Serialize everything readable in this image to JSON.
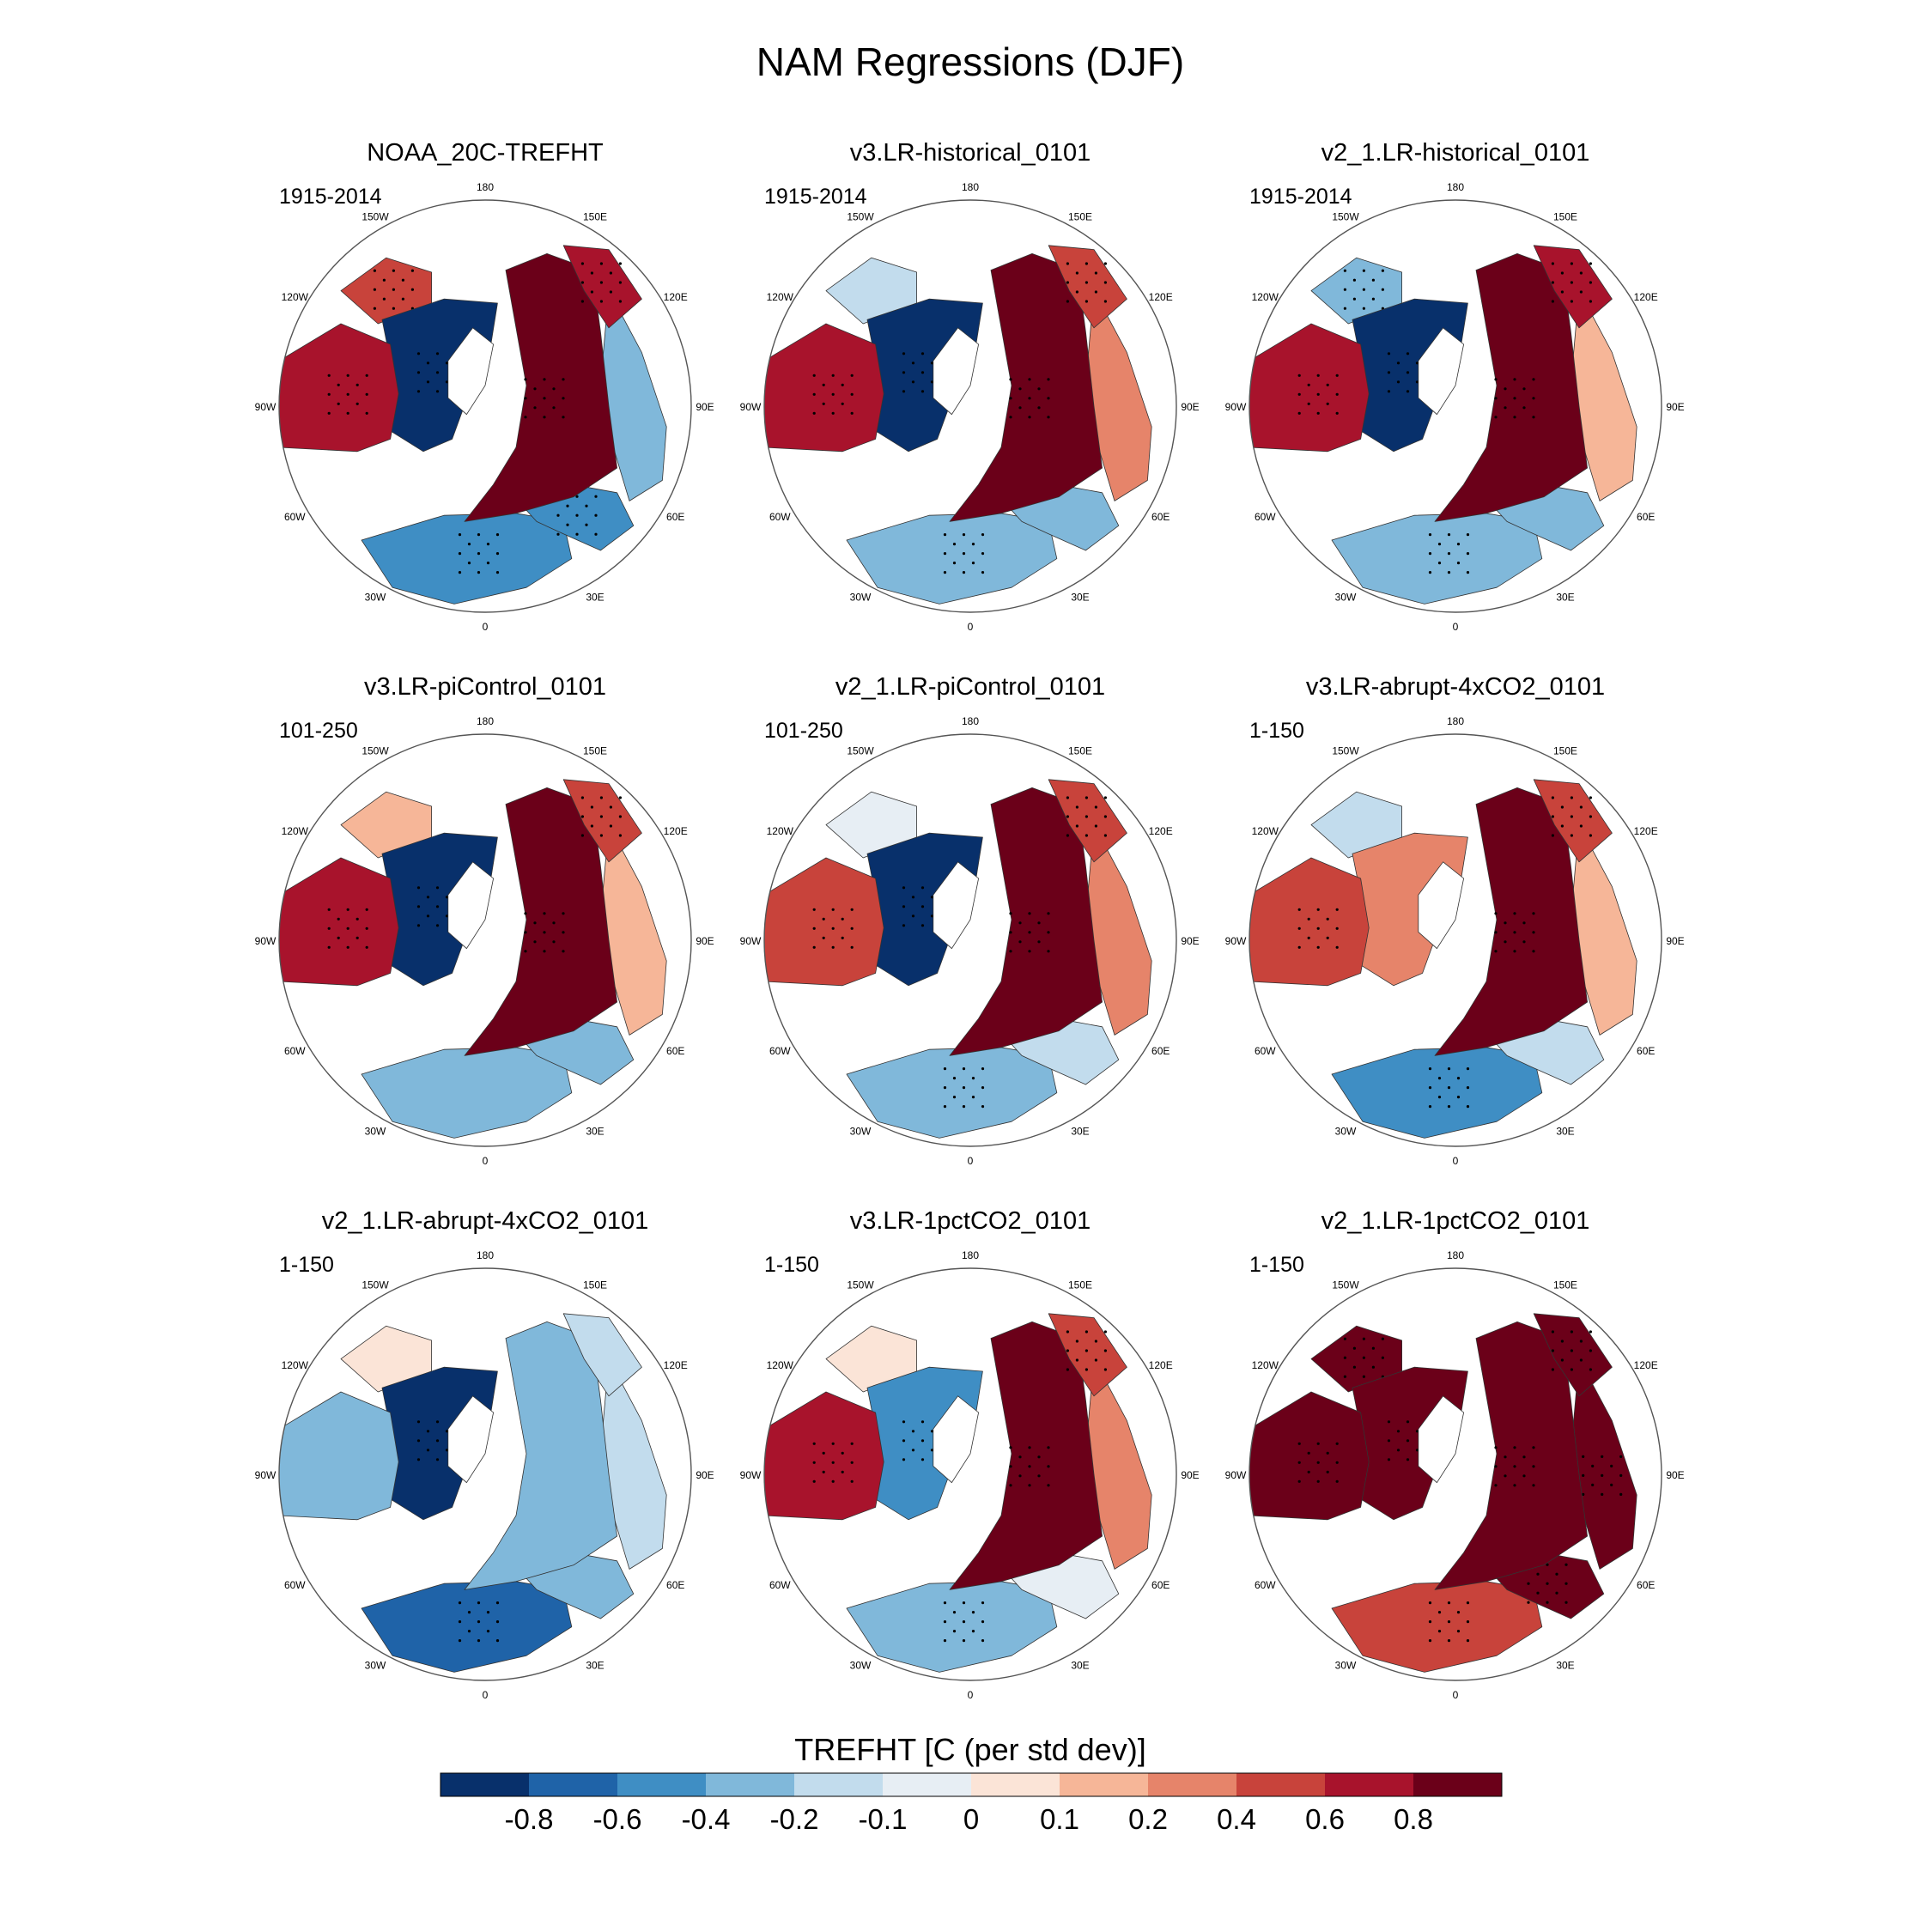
{
  "figure": {
    "title": "NAM Regressions (DJF)"
  },
  "chart_data": {
    "type": "heatmap",
    "projection": "north-polar-stereographic",
    "title": "NAM Regressions (DJF)",
    "variable": "TREFHT",
    "units_label": "TREFHT [C (per std dev)]",
    "significance": "stippling",
    "longitude_labels": [
      "180",
      "150E",
      "120E",
      "90E",
      "60E",
      "30E",
      "0",
      "30W",
      "60W",
      "90W",
      "120W",
      "150W"
    ],
    "colorbar": {
      "title": "TREFHT [C (per std dev)]",
      "levels": [
        "-0.8",
        "-0.6",
        "-0.4",
        "-0.2",
        "-0.1",
        "0",
        "0.1",
        "0.2",
        "0.4",
        "0.6",
        "0.8"
      ],
      "colors": [
        "#08306b",
        "#1f63a8",
        "#3f8ec4",
        "#80b8da",
        "#c2dced",
        "#e7eef4",
        "#fbe4d7",
        "#f6b698",
        "#e6846a",
        "#c8433b",
        "#a8132c",
        "#6b0019"
      ]
    },
    "panels": [
      {
        "name": "NOAA_20C-TREFHT",
        "period": "1915-2014",
        "regions": {
          "eurasia": 0.9,
          "siberia": 0.7,
          "north_america": -0.85,
          "alaska": 0.5,
          "central_na": 0.7,
          "north_africa": -0.45,
          "middle_east": -0.6,
          "east_asia": -0.25
        }
      },
      {
        "name": "v3.LR-historical_0101",
        "period": "1915-2014",
        "regions": {
          "eurasia": 0.9,
          "siberia": 0.4,
          "north_america": -0.9,
          "alaska": -0.2,
          "central_na": 0.6,
          "north_africa": -0.4,
          "middle_east": -0.3,
          "east_asia": 0.2
        }
      },
      {
        "name": "v2_1.LR-historical_0101",
        "period": "1915-2014",
        "regions": {
          "eurasia": 0.9,
          "siberia": 0.6,
          "north_america": -0.9,
          "alaska": -0.4,
          "central_na": 0.6,
          "north_africa": -0.4,
          "middle_east": -0.3,
          "east_asia": 0.15
        }
      },
      {
        "name": "v3.LR-piControl_0101",
        "period": "101-250",
        "regions": {
          "eurasia": 0.9,
          "siberia": 0.4,
          "north_america": -0.9,
          "alaska": 0.1,
          "central_na": 0.6,
          "north_africa": -0.35,
          "middle_east": -0.3,
          "east_asia": 0.1
        }
      },
      {
        "name": "v2_1.LR-piControl_0101",
        "period": "101-250",
        "regions": {
          "eurasia": 0.9,
          "siberia": 0.5,
          "north_america": -0.9,
          "alaska": -0.1,
          "central_na": 0.5,
          "north_africa": -0.4,
          "middle_east": -0.2,
          "east_asia": 0.2
        }
      },
      {
        "name": "v3.LR-abrupt-4xCO2_0101",
        "period": "1-150",
        "regions": {
          "eurasia": 0.9,
          "siberia": 0.5,
          "north_america": 0.3,
          "alaska": -0.15,
          "central_na": 0.4,
          "north_africa": -0.6,
          "middle_east": -0.2,
          "east_asia": 0.15
        }
      },
      {
        "name": "v2_1.LR-abrupt-4xCO2_0101",
        "period": "1-150",
        "regions": {
          "eurasia": -0.3,
          "siberia": -0.15,
          "north_america": -0.9,
          "alaska": 0.05,
          "central_na": -0.35,
          "north_africa": -0.7,
          "middle_east": -0.3,
          "east_asia": -0.2
        }
      },
      {
        "name": "v3.LR-1pctCO2_0101",
        "period": "1-150",
        "regions": {
          "eurasia": 0.9,
          "siberia": 0.5,
          "north_america": -0.6,
          "alaska": 0.05,
          "central_na": 0.6,
          "north_africa": -0.4,
          "middle_east": -0.1,
          "east_asia": 0.2
        }
      },
      {
        "name": "v2_1.LR-1pctCO2_0101",
        "period": "1-150",
        "regions": {
          "eurasia": 0.9,
          "siberia": 0.9,
          "north_america": 0.9,
          "alaska": 0.9,
          "central_na": 0.9,
          "north_africa": 0.4,
          "middle_east": 0.8,
          "east_asia": 0.9
        }
      }
    ]
  }
}
